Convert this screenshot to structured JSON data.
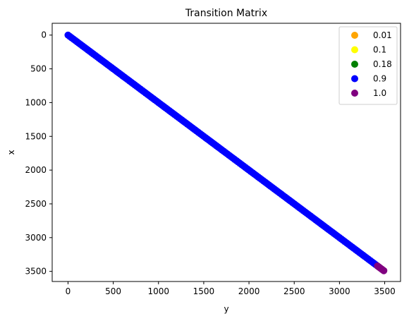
{
  "chart_data": {
    "type": "scatter",
    "title": "Transition Matrix",
    "xlabel": "y",
    "ylabel": "x",
    "xlim": [
      -175,
      3675
    ],
    "ylim": [
      3650,
      -175
    ],
    "y_inverted": true,
    "xticks": [
      0,
      500,
      1000,
      1500,
      2000,
      2500,
      3000,
      3500
    ],
    "yticks": [
      0,
      500,
      1000,
      1500,
      2000,
      2500,
      3000,
      3500
    ],
    "grid": false,
    "legend_position": "top-right",
    "series": [
      {
        "name": "0.01",
        "color": "#ffa500",
        "points": []
      },
      {
        "name": "0.1",
        "color": "#ffff00",
        "points": []
      },
      {
        "name": "0.18",
        "color": "#008000",
        "points": []
      },
      {
        "name": "0.9",
        "color": "#0000ff",
        "points_range": {
          "start": 0,
          "end": 3420,
          "step": 20,
          "relation": "x equals y (diagonal)"
        }
      },
      {
        "name": "1.0",
        "color": "#800080",
        "points": [
          [
            3420,
            3420
          ],
          [
            3430,
            3430
          ],
          [
            3440,
            3440
          ],
          [
            3450,
            3450
          ],
          [
            3460,
            3460
          ],
          [
            3470,
            3470
          ],
          [
            3480,
            3480
          ],
          [
            3490,
            3490
          ]
        ]
      }
    ]
  }
}
